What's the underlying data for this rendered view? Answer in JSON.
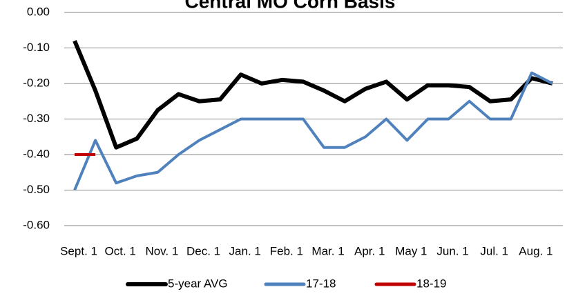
{
  "chart_data": {
    "type": "line",
    "title": "Central MO Corn Basis",
    "categories": [
      "Sept. 1",
      null,
      "Oct. 1",
      null,
      "Nov. 1",
      null,
      "Dec. 1",
      null,
      "Jan. 1",
      null,
      "Feb. 1",
      null,
      "Mar. 1",
      null,
      "Apr. 1",
      null,
      "May 1",
      null,
      "Jun. 1",
      null,
      "Jul. 1",
      null,
      "Aug. 1",
      null
    ],
    "series": [
      {
        "name": "5-year AVG",
        "color": "#000000",
        "values": [
          -0.08,
          -0.22,
          -0.38,
          -0.355,
          -0.275,
          -0.23,
          -0.25,
          -0.245,
          -0.175,
          -0.2,
          -0.19,
          -0.195,
          -0.22,
          -0.25,
          -0.215,
          -0.195,
          -0.245,
          -0.205,
          -0.205,
          -0.21,
          -0.25,
          -0.245,
          -0.185,
          -0.2
        ]
      },
      {
        "name": "17-18",
        "color": "#4f81bd",
        "values": [
          -0.5,
          -0.36,
          -0.48,
          -0.46,
          -0.45,
          -0.4,
          -0.36,
          -0.33,
          -0.3,
          -0.3,
          -0.3,
          -0.3,
          -0.38,
          -0.38,
          -0.35,
          -0.3,
          -0.36,
          -0.3,
          -0.3,
          -0.25,
          -0.3,
          -0.3,
          -0.17,
          -0.2
        ]
      },
      {
        "name": "18-19",
        "color": "#c00000",
        "values": [
          -0.4,
          -0.4,
          null,
          null,
          null,
          null,
          null,
          null,
          null,
          null,
          null,
          null,
          null,
          null,
          null,
          null,
          null,
          null,
          null,
          null,
          null,
          null,
          null,
          null
        ]
      }
    ],
    "ylim": [
      -0.6,
      0
    ],
    "yticks": [
      {
        "value": 0,
        "label": "0.00"
      },
      {
        "value": -0.1,
        "label": "-0.10"
      },
      {
        "value": -0.2,
        "label": "-0.20"
      },
      {
        "value": -0.3,
        "label": "-0.30"
      },
      {
        "value": -0.4,
        "label": "-0.40"
      },
      {
        "value": -0.5,
        "label": "-0.50"
      },
      {
        "value": -0.6,
        "label": "-0.60"
      }
    ],
    "grid": true,
    "legend": "bottom"
  }
}
